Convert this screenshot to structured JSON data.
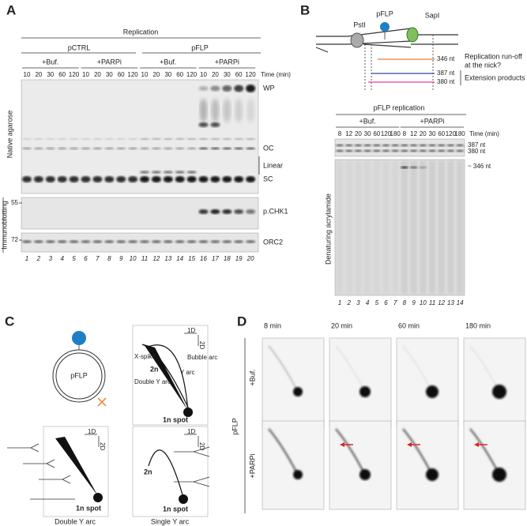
{
  "panel_a": {
    "label": "A",
    "header": "Replication",
    "constructs": [
      "pCTRL",
      "pFLP"
    ],
    "groups": [
      {
        "treatment": "+Buf.",
        "times": [
          10,
          20,
          30,
          60,
          120
        ]
      },
      {
        "treatment": "+PARPi",
        "times": [
          10,
          20,
          30,
          60,
          120
        ]
      },
      {
        "treatment": "+Buf.",
        "times": [
          10,
          20,
          30,
          60,
          120
        ]
      },
      {
        "treatment": "+PARPi",
        "times": [
          10,
          20,
          30,
          60,
          120
        ]
      }
    ],
    "time_label": "Time (min)",
    "bands": [
      "WP",
      "OC",
      "Linear",
      "SC"
    ],
    "blots": [
      "p.CHK1",
      "ORC2"
    ],
    "gel_label": "Native agarose",
    "blot_label": "Immunoblotting",
    "markers": [
      55,
      72
    ],
    "lanes": [
      1,
      2,
      3,
      4,
      5,
      6,
      7,
      8,
      9,
      10,
      11,
      12,
      13,
      14,
      15,
      16,
      17,
      18,
      19,
      20
    ]
  },
  "panel_b": {
    "label": "B",
    "diagram": {
      "site1": "PstI",
      "plasmid": "pFLP",
      "site2": "SapI",
      "runoff_size": "346 nt",
      "runoff_note": [
        "Replication run-off",
        "at the nick?"
      ],
      "ext_sizes": [
        "387 nt",
        "380 nt"
      ],
      "ext_label": "Extension products"
    },
    "gel": {
      "title": "pFLP replication",
      "groups": [
        {
          "treatment": "+Buf.",
          "times": [
            8,
            12,
            20,
            30,
            60,
            120,
            180
          ]
        },
        {
          "treatment": "+PARPi",
          "times": [
            8,
            12,
            20,
            30,
            60,
            120,
            180
          ]
        }
      ],
      "time_label": "Time (min)",
      "top_sizes": [
        "387 nt",
        "380 nt"
      ],
      "band": "~ 346 nt",
      "gel_label": "Denaturing acrylamide",
      "lanes": [
        1,
        2,
        3,
        4,
        5,
        6,
        7,
        8,
        9,
        10,
        11,
        12,
        13,
        14
      ]
    }
  },
  "panel_c": {
    "label": "C",
    "plasmid": "pFLP",
    "schematic": {
      "axes": [
        "1D",
        "2D"
      ],
      "x_spike": "X-spike",
      "bubble_arc": "Bubble arc",
      "y_arc": "Y arc",
      "two_n": "2n",
      "double_y": "Double Y arc",
      "spot": "1n spot"
    },
    "double_y_panel": {
      "axes": [
        "1D",
        "2D"
      ],
      "spot": "1n spot",
      "caption": "Double Y arc"
    },
    "single_y_panel": {
      "axes": [
        "1D",
        "2D"
      ],
      "two_n": "2n",
      "spot": "1n spot",
      "caption": "Single Y arc"
    }
  },
  "panel_d": {
    "label": "D",
    "times": [
      "8 min",
      "20 min",
      "60 min",
      "180 min"
    ],
    "construct": "pFLP",
    "rows": [
      "+Buf.",
      "+PARPi"
    ]
  }
}
